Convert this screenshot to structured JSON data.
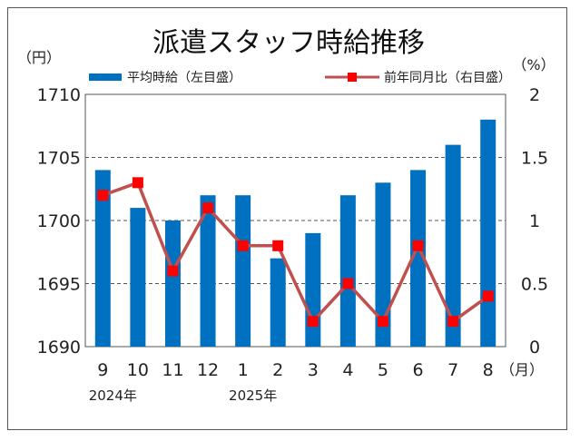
{
  "chart_data": {
    "type": "bar",
    "title": "派遣スタッフ時給推移",
    "categories": [
      "9",
      "10",
      "11",
      "12",
      "1",
      "2",
      "3",
      "4",
      "5",
      "6",
      "7",
      "8"
    ],
    "x_unit": "（月）",
    "year_labels": [
      {
        "category_index": 0,
        "text": "2024年"
      },
      {
        "category_index": 4,
        "text": "2025年"
      }
    ],
    "series": [
      {
        "name": "平均時給（左目盛）",
        "type": "bar",
        "axis": "left",
        "color": "#0070C0",
        "values": [
          1704,
          1701,
          1700,
          1702,
          1702,
          1697,
          1699,
          1702,
          1703,
          1704,
          1706,
          1708
        ]
      },
      {
        "name": "前年同月比（右目盛）",
        "type": "line",
        "axis": "right",
        "color": "#C0504D",
        "marker_color": "#FF0000",
        "values": [
          1.2,
          1.3,
          0.6,
          1.1,
          0.8,
          0.8,
          0.2,
          0.5,
          0.2,
          0.8,
          0.2,
          0.4
        ]
      }
    ],
    "y_left": {
      "unit": "（円）",
      "range": [
        1690,
        1710
      ],
      "ticks": [
        "1690",
        "1695",
        "1700",
        "1705",
        "1710"
      ]
    },
    "y_right": {
      "unit": "（%）",
      "range": [
        0,
        2
      ],
      "ticks": [
        "0",
        "0.5",
        "1",
        "1.5",
        "2"
      ]
    },
    "grid": "horizontal dashed",
    "legend_position": "top"
  }
}
